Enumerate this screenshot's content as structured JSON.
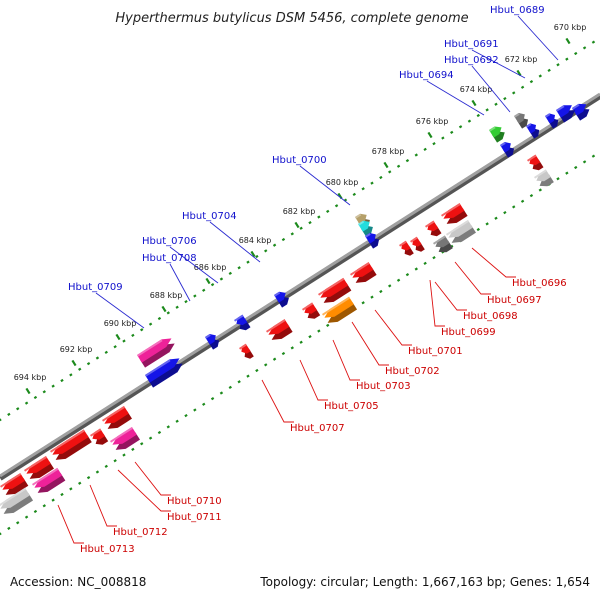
{
  "title": "Hyperthermus butylicus DSM 5456, complete genome",
  "accession": "Accession: NC_008818",
  "summary": "Topology: circular; Length: 1,667,163 bp; Genes: 1,654",
  "colors": {
    "forward_label": "#1010cc",
    "reverse_label": "#cc0000",
    "leader_forward": "#2a2ad0",
    "leader_reverse": "#dd1111",
    "tick_dots": "#1c8a1c",
    "backbone": "#8a8a8a",
    "red": "#ee1111",
    "blue": "#1515e8",
    "pink": "#ee2299",
    "orange": "#ff8c00",
    "gray": "#777777",
    "lightgray": "#c8c8c8",
    "green": "#33cc33",
    "cyan": "#22dddd",
    "tan": "#b5a06a"
  },
  "ticks": [
    "670 kbp",
    "672 kbp",
    "674 kbp",
    "676 kbp",
    "678 kbp",
    "680 kbp",
    "682 kbp",
    "684 kbp",
    "686 kbp",
    "688 kbp",
    "690 kbp",
    "692 kbp",
    "694 kbp"
  ],
  "forward_labels": [
    "Hbut_0689",
    "Hbut_0691",
    "Hbut_0692",
    "Hbut_0694",
    "Hbut_0700",
    "Hbut_0704",
    "Hbut_0706",
    "Hbut_0708",
    "Hbut_0709"
  ],
  "reverse_labels": [
    "Hbut_0696",
    "Hbut_0697",
    "Hbut_0698",
    "Hbut_0699",
    "Hbut_0701",
    "Hbut_0702",
    "Hbut_0703",
    "Hbut_0705",
    "Hbut_0707",
    "Hbut_0710",
    "Hbut_0711",
    "Hbut_0712",
    "Hbut_0713"
  ]
}
